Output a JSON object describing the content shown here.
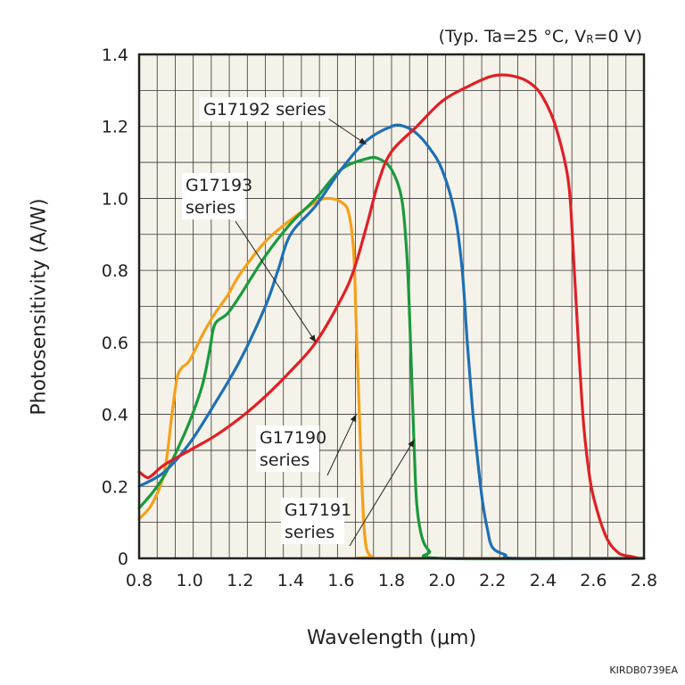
{
  "condition": {
    "prefix": "(Typ. Ta=25 °C, V",
    "sub": "R",
    "suffix": "=0 V)"
  },
  "figure_code": "KIRDB0739EA",
  "chart_data": {
    "type": "line",
    "title": "",
    "xlabel": "Wavelength (μm)",
    "ylabel": "Photosensitivity (A/W)",
    "xlim": [
      0.8,
      2.8
    ],
    "ylim": [
      0,
      1.4
    ],
    "xticks": [
      "0.8",
      "1.0",
      "1.2",
      "1.4",
      "1.6",
      "1.8",
      "2.0",
      "2.2",
      "2.4",
      "2.6",
      "2.8"
    ],
    "yticks": [
      "0",
      "0.2",
      "0.4",
      "0.6",
      "0.8",
      "1.0",
      "1.2",
      "1.4"
    ],
    "grid": true,
    "series": [
      {
        "name": "G17190 series",
        "color": "#f5a01a",
        "x": [
          0.8,
          0.85,
          0.9,
          0.93,
          0.95,
          0.97,
          1.0,
          1.05,
          1.1,
          1.15,
          1.2,
          1.3,
          1.4,
          1.5,
          1.55,
          1.6,
          1.63,
          1.65,
          1.66,
          1.67,
          1.68,
          1.69,
          1.7,
          1.72,
          1.75,
          2.8
        ],
        "y": [
          0.11,
          0.15,
          0.24,
          0.4,
          0.5,
          0.53,
          0.55,
          0.62,
          0.68,
          0.73,
          0.79,
          0.88,
          0.94,
          0.99,
          1.0,
          0.99,
          0.96,
          0.85,
          0.65,
          0.45,
          0.25,
          0.1,
          0.03,
          0.005,
          0.0,
          0.0
        ]
      },
      {
        "name": "G17191 series",
        "color": "#1a9a3c",
        "x": [
          0.8,
          0.85,
          0.9,
          0.95,
          1.0,
          1.05,
          1.08,
          1.1,
          1.15,
          1.2,
          1.3,
          1.4,
          1.5,
          1.6,
          1.7,
          1.75,
          1.8,
          1.84,
          1.86,
          1.87,
          1.88,
          1.89,
          1.9,
          1.92,
          1.95,
          2.0,
          2.8
        ],
        "y": [
          0.14,
          0.18,
          0.23,
          0.3,
          0.38,
          0.48,
          0.58,
          0.65,
          0.68,
          0.73,
          0.84,
          0.93,
          1.0,
          1.08,
          1.11,
          1.11,
          1.08,
          1.0,
          0.85,
          0.7,
          0.5,
          0.3,
          0.15,
          0.06,
          0.02,
          0.0,
          0.0
        ]
      },
      {
        "name": "G17192 series",
        "color": "#1f6fb5",
        "x": [
          0.8,
          0.9,
          1.0,
          1.1,
          1.2,
          1.3,
          1.35,
          1.4,
          1.5,
          1.6,
          1.7,
          1.8,
          1.85,
          1.9,
          1.95,
          2.0,
          2.05,
          2.08,
          2.1,
          2.12,
          2.14,
          2.16,
          2.18,
          2.2,
          2.25,
          2.3,
          2.8
        ],
        "y": [
          0.2,
          0.24,
          0.32,
          0.43,
          0.55,
          0.7,
          0.8,
          0.9,
          0.98,
          1.08,
          1.16,
          1.2,
          1.2,
          1.18,
          1.14,
          1.08,
          0.96,
          0.8,
          0.6,
          0.42,
          0.28,
          0.16,
          0.08,
          0.03,
          0.01,
          0.0,
          0.0
        ]
      },
      {
        "name": "G17193 series",
        "color": "#e01f26",
        "x": [
          0.8,
          0.83,
          0.85,
          0.9,
          1.0,
          1.1,
          1.2,
          1.3,
          1.4,
          1.5,
          1.6,
          1.65,
          1.7,
          1.75,
          1.8,
          1.9,
          2.0,
          2.1,
          2.2,
          2.28,
          2.35,
          2.4,
          2.45,
          2.5,
          2.52,
          2.54,
          2.56,
          2.58,
          2.6,
          2.65,
          2.7,
          2.75,
          2.78
        ],
        "y": [
          0.24,
          0.225,
          0.23,
          0.26,
          0.3,
          0.34,
          0.39,
          0.45,
          0.52,
          0.6,
          0.72,
          0.8,
          0.92,
          1.05,
          1.13,
          1.2,
          1.27,
          1.31,
          1.34,
          1.34,
          1.32,
          1.28,
          1.2,
          1.05,
          0.85,
          0.6,
          0.38,
          0.25,
          0.17,
          0.06,
          0.015,
          0.005,
          0.0
        ]
      }
    ],
    "annotations": [
      {
        "lines": [
          "G17192 series"
        ],
        "target_x": 1.7,
        "target_y": 1.15
      },
      {
        "lines": [
          "G17193",
          "series"
        ],
        "target_x": 1.5,
        "target_y": 0.6
      },
      {
        "lines": [
          "G17190",
          "series"
        ],
        "target_x": 1.66,
        "target_y": 0.4
      },
      {
        "lines": [
          "G17191",
          "series"
        ],
        "target_x": 1.89,
        "target_y": 0.33
      }
    ]
  }
}
